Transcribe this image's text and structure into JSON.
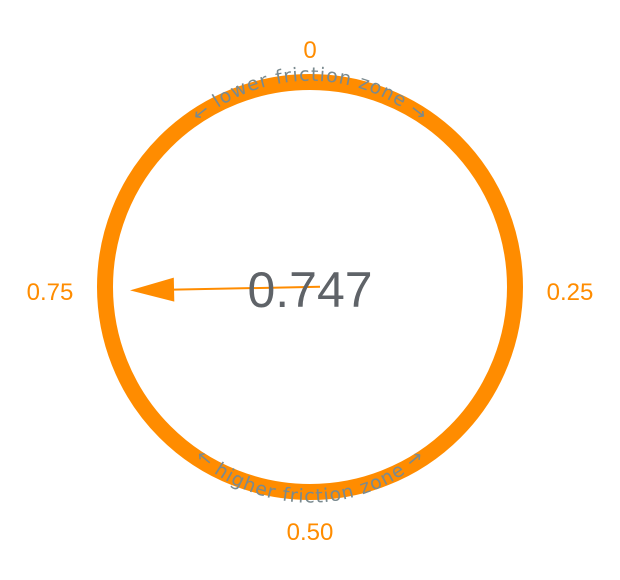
{
  "colors": {
    "accent": "#FF8C00",
    "zone_text": "#7A8A8F",
    "value_text": "#5F6368",
    "background": "#FFFFFF"
  },
  "dial": {
    "value": 0.747,
    "value_label": "0.747",
    "ticks": [
      {
        "label": "0",
        "value": 0
      },
      {
        "label": "0.25",
        "value": 0.25
      },
      {
        "label": "0.50",
        "value": 0.5
      },
      {
        "label": "0.75",
        "value": 0.75
      }
    ],
    "upper_zone_label": "← lower friction zone →",
    "lower_zone_label": "← higher friction zone →"
  }
}
